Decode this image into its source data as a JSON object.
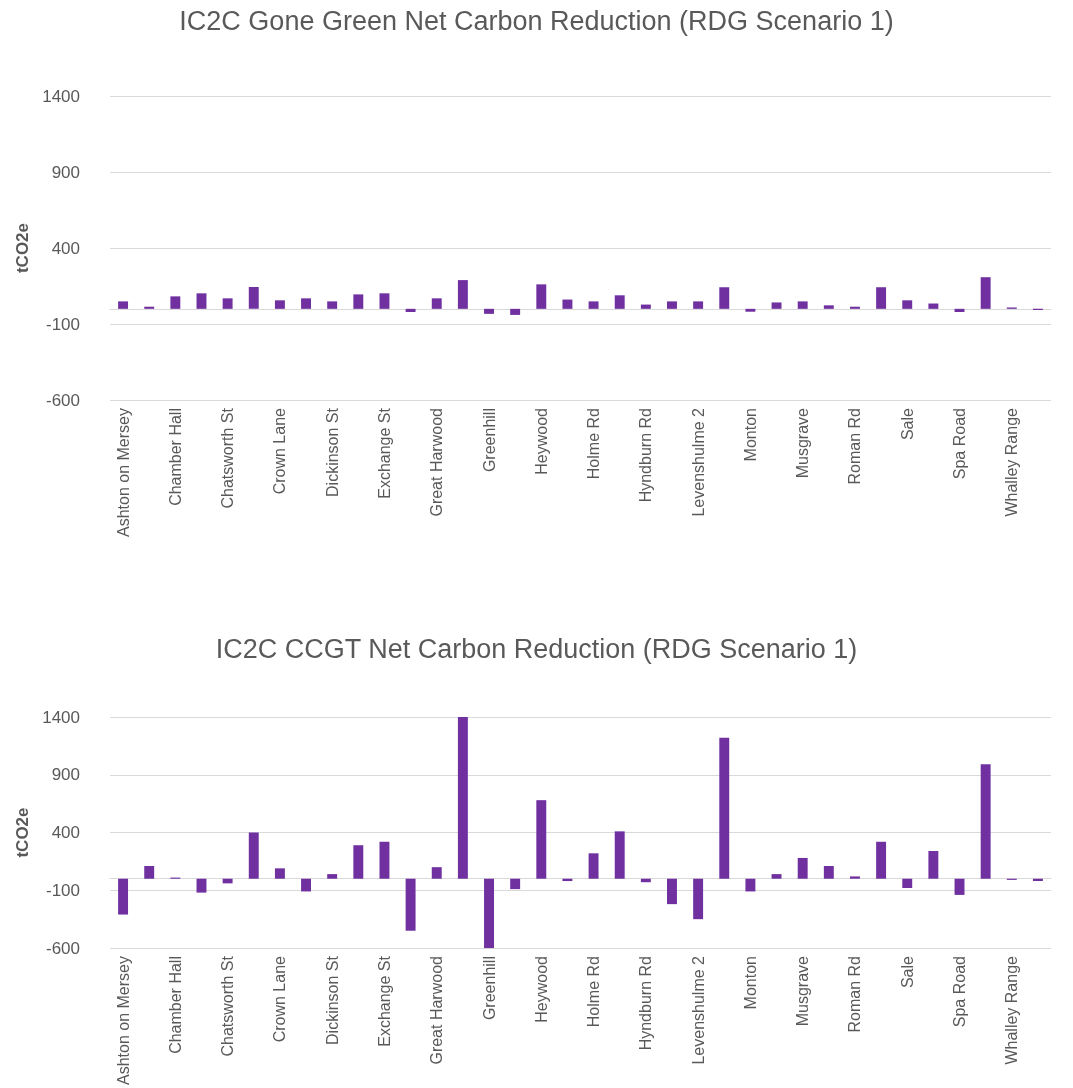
{
  "chart_data": [
    {
      "type": "bar",
      "title": "IC2C Gone Green Net Carbon Reduction (RDG Scenario 1)",
      "ylabel": "tCO2e",
      "categories": [
        "Ashton on Mersey",
        null,
        "Chamber Hall",
        null,
        "Chatsworth St",
        null,
        "Crown Lane",
        null,
        "Dickinson St",
        null,
        "Exchange St",
        null,
        "Great Harwood",
        null,
        "Greenhill",
        null,
        "Heywood",
        null,
        "Holme Rd",
        null,
        "Hyndburn Rd",
        null,
        "Levenshulme 2",
        null,
        "Monton",
        null,
        "Musgrave",
        null,
        "Roman Rd",
        null,
        "Sale",
        null,
        "Spa Road",
        null,
        "Whalley Range",
        null
      ],
      "series": [
        {
          "color": "#7030a0",
          "values": [
            49,
            14,
            82,
            102,
            69,
            143,
            56,
            69,
            49,
            95,
            102,
            -21,
            69,
            189,
            -33,
            -40,
            161,
            61,
            49,
            89,
            28,
            49,
            49,
            142,
            -19,
            42,
            49,
            23,
            14,
            142,
            56,
            35,
            -21,
            208,
            9,
            -7
          ]
        }
      ],
      "ylim": [
        -600,
        1400
      ],
      "yticks": [
        -600,
        -100,
        400,
        900,
        1400
      ],
      "grid": "y"
    },
    {
      "type": "bar",
      "title": "IC2C CCGT Net Carbon Reduction (RDG Scenario 1)",
      "ylabel": "tCO2e",
      "categories": [
        "Ashton on Mersey",
        null,
        "Chamber Hall",
        null,
        "Chatsworth St",
        null,
        "Crown Lane",
        null,
        "Dickinson St",
        null,
        "Exchange St",
        null,
        "Great Harwood",
        null,
        "Greenhill",
        null,
        "Heywood",
        null,
        "Holme Rd",
        null,
        "Hyndburn Rd",
        null,
        "Levenshulme 2",
        null,
        "Monton",
        null,
        "Musgrave",
        null,
        "Roman Rd",
        null,
        "Sale",
        null,
        "Spa Road",
        null,
        "Whalley Range",
        null
      ],
      "series": [
        {
          "color": "#7030a0",
          "values": [
            -310,
            110,
            10,
            -120,
            -40,
            400,
            90,
            -110,
            40,
            290,
            320,
            -450,
            100,
            1400,
            -600,
            -90,
            680,
            -20,
            220,
            410,
            -30,
            -220,
            -350,
            1220,
            -110,
            40,
            180,
            110,
            20,
            320,
            -80,
            240,
            -140,
            990,
            -10,
            -20
          ]
        }
      ],
      "ylim": [
        -600,
        1400
      ],
      "yticks": [
        -600,
        -100,
        400,
        900,
        1400
      ],
      "grid": "y"
    }
  ]
}
